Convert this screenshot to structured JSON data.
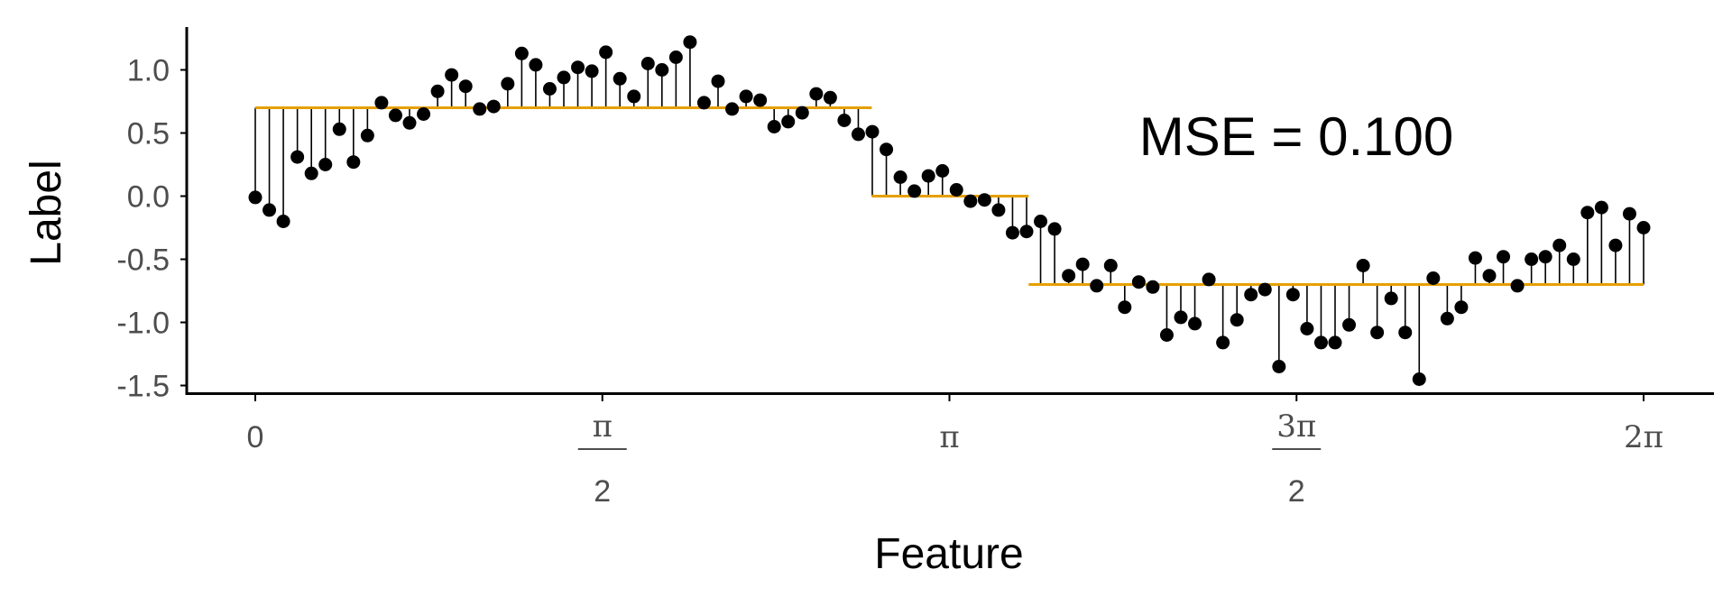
{
  "chart_data": {
    "type": "scatter",
    "xlabel": "Feature",
    "ylabel": "Label",
    "annotation": "MSE = 0.100",
    "xlim": [
      0,
      6.2832
    ],
    "ylim": [
      -1.55,
      1.32
    ],
    "y_ticks": [
      {
        "value": 1.0,
        "label": "1.0"
      },
      {
        "value": 0.5,
        "label": "0.5"
      },
      {
        "value": 0.0,
        "label": "0.0"
      },
      {
        "value": -0.5,
        "label": "-0.5"
      },
      {
        "value": -1.0,
        "label": "-1.0"
      },
      {
        "value": -1.5,
        "label": "-1.5"
      }
    ],
    "x_ticks": [
      {
        "value": 0,
        "label": "0",
        "denominator": ""
      },
      {
        "value": 1.5708,
        "label": "π",
        "denominator": "2"
      },
      {
        "value": 3.1416,
        "label": "π",
        "denominator": ""
      },
      {
        "value": 4.7124,
        "label": "3π",
        "denominator": "2"
      },
      {
        "value": 6.2832,
        "label": "2π",
        "denominator": ""
      }
    ],
    "grid": false,
    "colors": {
      "points": "#000000",
      "fit": "#E69F00",
      "stems": "#000000",
      "axes": "#000000"
    },
    "fit_segments": [
      {
        "x0": 0.0,
        "x1": 2.79,
        "y": 0.7
      },
      {
        "x0": 2.79,
        "x1": 3.5,
        "y": 0.0
      },
      {
        "x0": 3.5,
        "x1": 6.2832,
        "y": -0.7
      }
    ],
    "points": {
      "x": [
        0.0,
        0.0635,
        0.1269,
        0.1904,
        0.2539,
        0.3173,
        0.3808,
        0.4443,
        0.5077,
        0.5712,
        0.6347,
        0.6981,
        0.7616,
        0.8251,
        0.8885,
        0.952,
        1.0155,
        1.0789,
        1.1424,
        1.2059,
        1.2693,
        1.3328,
        1.3963,
        1.4597,
        1.5232,
        1.5867,
        1.6501,
        1.7136,
        1.7771,
        1.8405,
        1.904,
        1.9675,
        2.0309,
        2.0944,
        2.1579,
        2.2213,
        2.2848,
        2.3483,
        2.4117,
        2.4752,
        2.5387,
        2.6021,
        2.6656,
        2.7291,
        2.7925,
        2.856,
        2.9195,
        2.9829,
        3.0464,
        3.1099,
        3.1733,
        3.2368,
        3.3003,
        3.3637,
        3.4272,
        3.4907,
        3.5541,
        3.6176,
        3.6811,
        3.7445,
        3.808,
        3.8715,
        3.9349,
        3.9984,
        4.0619,
        4.1253,
        4.1888,
        4.2523,
        4.3157,
        4.3792,
        4.4427,
        4.5061,
        4.5696,
        4.6331,
        4.6965,
        4.76,
        4.8235,
        4.8869,
        4.9504,
        5.0139,
        5.0773,
        5.1408,
        5.2043,
        5.2677,
        5.3312,
        5.3947,
        5.4581,
        5.5216,
        5.5851,
        5.6485,
        5.712,
        5.7755,
        5.8389,
        5.9024,
        5.9659,
        6.0293,
        6.0928,
        6.1563,
        6.2197,
        6.2832
      ],
      "y": [
        -0.01,
        -0.11,
        -0.2,
        0.31,
        0.18,
        0.25,
        0.53,
        0.27,
        0.48,
        0.74,
        0.64,
        0.58,
        0.65,
        0.83,
        0.96,
        0.87,
        0.69,
        0.71,
        0.89,
        1.13,
        1.04,
        0.85,
        0.94,
        1.02,
        0.99,
        1.14,
        0.93,
        0.79,
        1.05,
        1.0,
        1.1,
        1.22,
        0.74,
        0.91,
        0.69,
        0.79,
        0.76,
        0.55,
        0.59,
        0.66,
        0.81,
        0.78,
        0.6,
        0.49,
        0.51,
        0.37,
        0.15,
        0.04,
        0.16,
        0.2,
        0.05,
        -0.04,
        -0.03,
        -0.11,
        -0.29,
        -0.28,
        -0.2,
        -0.26,
        -0.63,
        -0.54,
        -0.71,
        -0.55,
        -0.88,
        -0.68,
        -0.72,
        -1.1,
        -0.96,
        -1.01,
        -0.66,
        -1.16,
        -0.98,
        -0.78,
        -0.74,
        -1.35,
        -0.78,
        -1.05,
        -1.16,
        -1.16,
        -1.02,
        -0.55,
        -1.08,
        -0.81,
        -1.08,
        -1.45,
        -0.65,
        -0.97,
        -0.88,
        -0.49,
        -0.63,
        -0.48,
        -0.71,
        -0.5,
        -0.48,
        -0.39,
        -0.5,
        -0.13,
        -0.09,
        -0.39,
        -0.14,
        -0.25
      ]
    }
  }
}
